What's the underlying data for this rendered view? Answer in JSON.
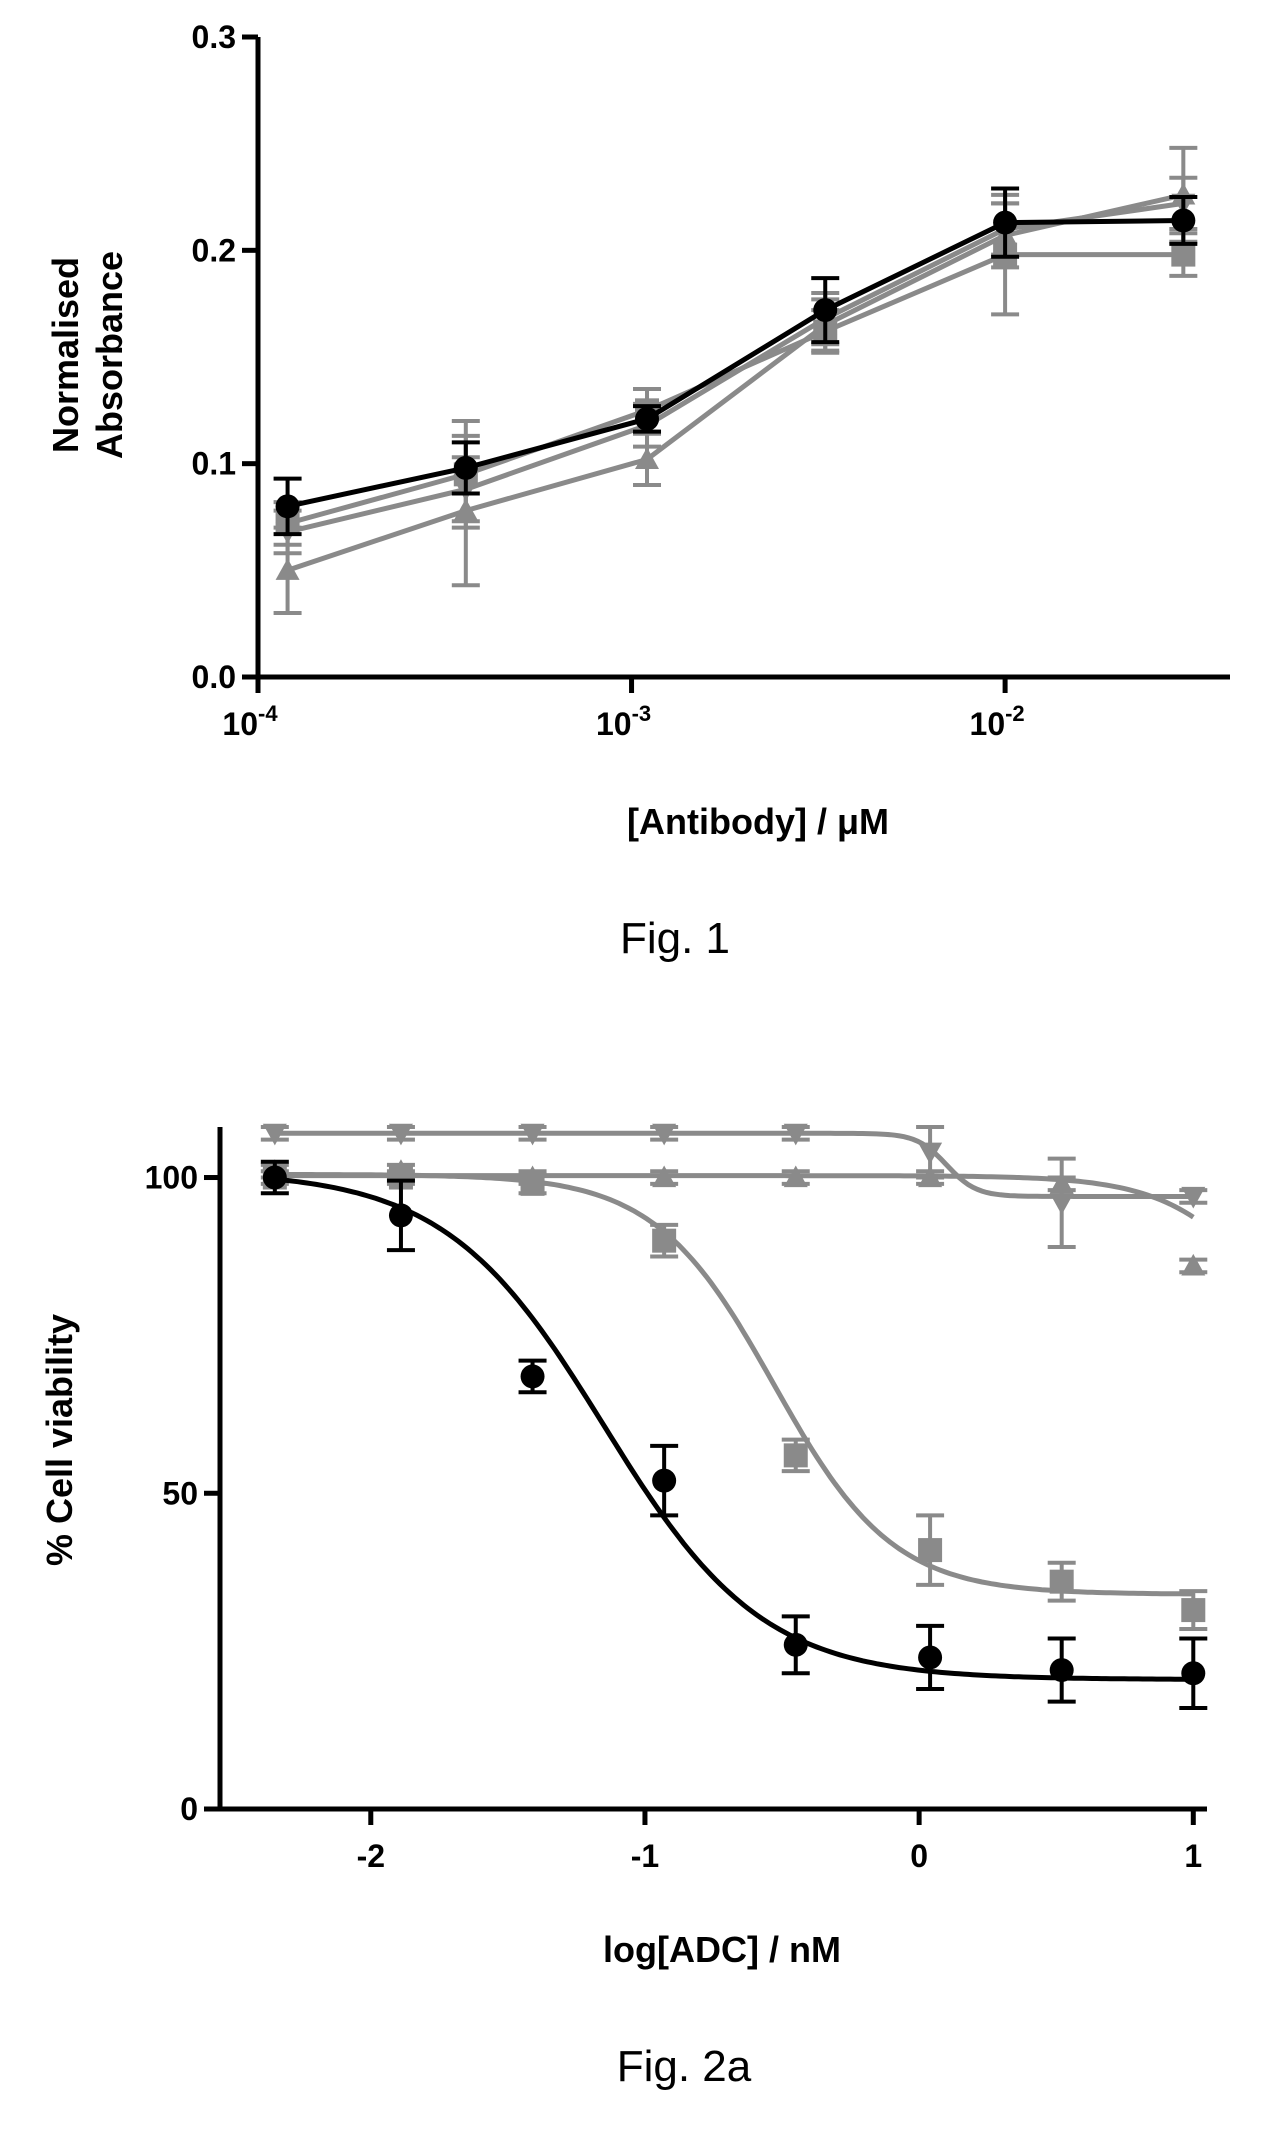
{
  "chart_data": [
    {
      "type": "line",
      "caption": "Fig. 1",
      "title": "",
      "xlabel": "[Antibody] / μM",
      "ylabel": [
        "Normalised",
        "Absorbance"
      ],
      "x_scale": "log",
      "xlim": [
        0.0001,
        0.04
      ],
      "ylim": [
        0,
        0.3
      ],
      "x_ticks": [
        {
          "value": 0.0001,
          "base": "10",
          "exp": "-4"
        },
        {
          "value": 0.001,
          "base": "10",
          "exp": "-3"
        },
        {
          "value": 0.01,
          "base": "10",
          "exp": "-2"
        }
      ],
      "y_ticks": [
        {
          "value": 0,
          "label": "0.0"
        },
        {
          "value": 0.1,
          "label": "0.1"
        },
        {
          "value": 0.2,
          "label": "0.2"
        },
        {
          "value": 0.3,
          "label": "0.3"
        }
      ],
      "x": [
        0.00012,
        0.00036,
        0.0011,
        0.0033,
        0.01,
        0.03
      ],
      "grid": false,
      "series": [
        {
          "marker": "circle",
          "color": "#000000",
          "values": [
            0.08,
            0.098,
            0.121,
            0.172,
            0.213,
            0.214
          ],
          "errors": [
            0.013,
            0.012,
            0.006,
            0.015,
            0.016,
            0.011
          ]
        },
        {
          "marker": "square",
          "color": "#8a8a8a",
          "values": [
            0.072,
            0.095,
            0.125,
            0.162,
            0.198,
            0.198
          ],
          "errors": [
            0.01,
            0.025,
            0.01,
            0.01,
            0.028,
            0.01
          ]
        },
        {
          "marker": "triangle-up",
          "color": "#8a8a8a",
          "values": [
            0.05,
            0.078,
            0.102,
            0.165,
            0.207,
            0.226
          ],
          "errors": [
            0.02,
            0.035,
            0.012,
            0.012,
            0.015,
            0.022
          ]
        },
        {
          "marker": "triangle-down",
          "color": "#8a8a8a",
          "values": [
            0.068,
            0.088,
            0.118,
            0.168,
            0.21,
            0.222
          ],
          "errors": [
            0.01,
            0.015,
            0.01,
            0.012,
            0.012,
            0.012
          ]
        }
      ]
    },
    {
      "type": "scatter",
      "caption": "Fig. 2a",
      "title": "",
      "xlabel": "log[ADC] / nM",
      "ylabel": "% Cell viability",
      "xlim": [
        -2.55,
        1.05
      ],
      "ylim": [
        0,
        108
      ],
      "x_ticks": [
        {
          "value": -2,
          "label": "-2"
        },
        {
          "value": -1,
          "label": "-1"
        },
        {
          "value": 0,
          "label": "0"
        },
        {
          "value": 1,
          "label": "1"
        }
      ],
      "y_ticks": [
        {
          "value": 0,
          "label": "0"
        },
        {
          "value": 50,
          "label": "50"
        },
        {
          "value": 100,
          "label": "100"
        }
      ],
      "x": [
        -2.35,
        -1.89,
        -1.41,
        -0.93,
        -0.45,
        0.04,
        0.52,
        1.0
      ],
      "grid": false,
      "series": [
        {
          "marker": "circle",
          "color": "#000000",
          "values": [
            100,
            94,
            68.5,
            52,
            26,
            24,
            22,
            21.5
          ],
          "errors": [
            2.5,
            5.5,
            2.5,
            5.5,
            4.5,
            5,
            5,
            5.5
          ],
          "fit": {
            "bottom": 20.5,
            "top": 101,
            "logIC50": -1.15,
            "hill": 1.5
          }
        },
        {
          "marker": "square",
          "color": "#8a8a8a",
          "values": [
            100,
            100,
            99,
            90,
            56,
            41,
            36,
            31.5
          ],
          "errors": [
            1,
            1,
            1.5,
            2.5,
            2.5,
            5.5,
            3,
            3
          ],
          "fit": {
            "bottom": 34,
            "top": 100.5,
            "logIC50": -0.53,
            "hill": 2.0
          }
        },
        {
          "marker": "triangle-up",
          "color": "#8a8a8a",
          "values": [
            101,
            101,
            100,
            100,
            100,
            100,
            99,
            86
          ],
          "errors": [
            1,
            1,
            1,
            1,
            1,
            1,
            1,
            1
          ],
          "fit": {
            "bottom": 55,
            "top": 100.3,
            "logIC50": 1.35,
            "hill": 2.2
          }
        },
        {
          "marker": "triangle-down",
          "color": "#8a8a8a",
          "values": [
            107,
            107,
            107,
            107,
            107,
            104,
            96,
            97
          ],
          "errors": [
            1,
            1,
            1,
            1,
            1,
            4,
            7,
            1
          ],
          "fit": {
            "bottom": 97,
            "top": 107,
            "logIC50": 0.1,
            "hill": 8
          }
        }
      ]
    }
  ]
}
